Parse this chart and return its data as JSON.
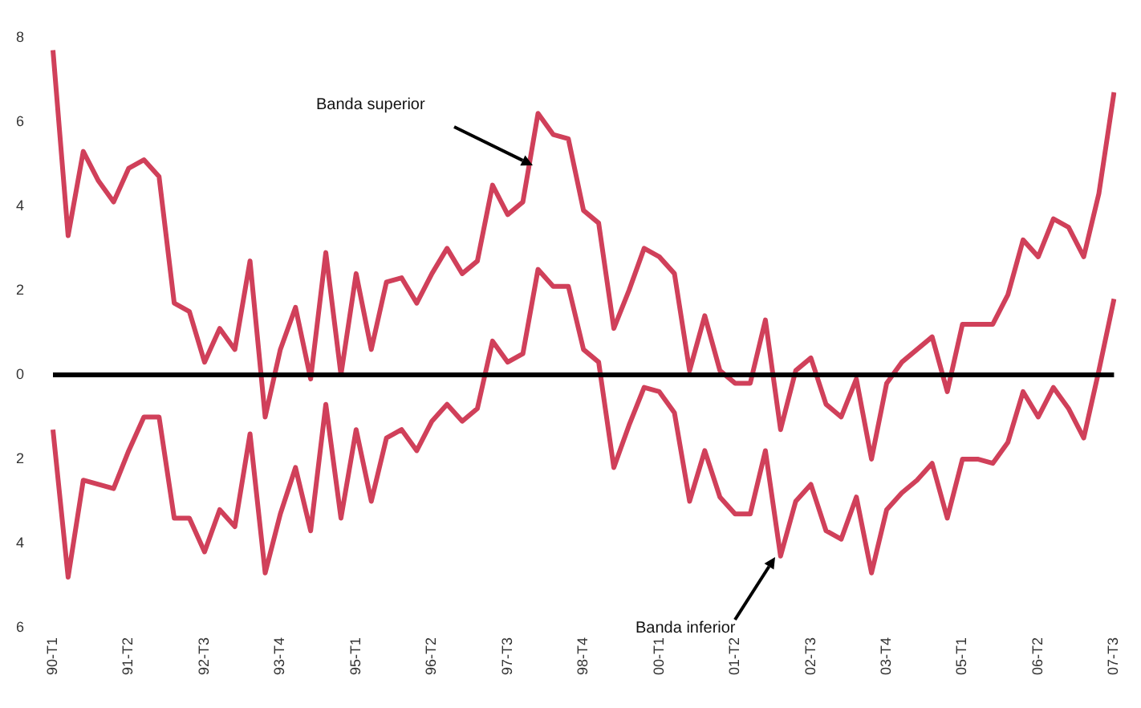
{
  "chart_data": {
    "type": "line",
    "categories": [
      "90-T1",
      null,
      null,
      null,
      null,
      "91-T2",
      null,
      null,
      null,
      null,
      "92-T3",
      null,
      null,
      null,
      null,
      "93-T4",
      null,
      null,
      null,
      null,
      "95-T1",
      null,
      null,
      null,
      null,
      "96-T2",
      null,
      null,
      null,
      null,
      "97-T3",
      null,
      null,
      null,
      null,
      "98-T4",
      null,
      null,
      null,
      null,
      "00-T1",
      null,
      null,
      null,
      null,
      "01-T2",
      null,
      null,
      null,
      null,
      "02-T3",
      null,
      null,
      null,
      null,
      "03-T4",
      null,
      null,
      null,
      null,
      "05-T1",
      null,
      null,
      null,
      null,
      "06-T2",
      null,
      null,
      null,
      null,
      "07-T3"
    ],
    "series": [
      {
        "color": "#d0405a",
        "values": [
          7.7,
          3.3,
          5.3,
          4.6,
          4.1,
          4.9,
          5.1,
          4.7,
          1.7,
          1.5,
          0.3,
          1.1,
          0.6,
          2.7,
          -1.0,
          0.6,
          1.6,
          -0.1,
          2.9,
          0,
          2.4,
          0.6,
          2.2,
          2.3,
          1.7,
          2.4,
          3.0,
          2.4,
          2.7,
          4.5,
          3.8,
          4.1,
          6.2,
          5.7,
          5.6,
          3.9,
          3.6,
          1.1,
          2.0,
          3.0,
          2.8,
          2.4,
          0.1,
          1.4,
          0.1,
          -0.2,
          -0.2,
          1.3,
          -1.3,
          0.1,
          0.4,
          -0.7,
          -1.0,
          -0.1,
          -2.0,
          -0.2,
          0.3,
          0.6,
          0.9,
          -0.4,
          1.2,
          1.2,
          1.2,
          1.9,
          3.2,
          2.8,
          3.7,
          3.5,
          2.8,
          4.3,
          6.7
        ]
      },
      {
        "color": "#d0405a",
        "values": [
          -1.3,
          -4.8,
          -2.5,
          -2.6,
          -2.7,
          -1.8,
          -1.0,
          -1.0,
          -3.4,
          -3.4,
          -4.2,
          -3.2,
          -3.6,
          -1.4,
          -4.7,
          -3.3,
          -2.2,
          -3.7,
          -0.7,
          -3.4,
          -1.3,
          -3.0,
          -1.5,
          -1.3,
          -1.8,
          -1.1,
          -0.7,
          -1.1,
          -0.8,
          0.8,
          0.3,
          0.5,
          2.5,
          2.1,
          2.1,
          0.6,
          0.3,
          -2.2,
          -1.2,
          -0.3,
          -0.4,
          -0.9,
          -3.0,
          -1.8,
          -2.9,
          -3.3,
          -3.3,
          -1.8,
          -4.3,
          -3.0,
          -2.6,
          -3.7,
          -3.9,
          -2.9,
          -4.7,
          -3.2,
          -2.8,
          -2.5,
          -2.1,
          -3.4,
          -2.0,
          -2.0,
          -2.1,
          -1.6,
          -0.4,
          -1.0,
          -0.3,
          -0.8,
          -1.5,
          0.1,
          1.8
        ]
      }
    ],
    "ylim": [
      -6,
      8
    ],
    "yticks": [
      8,
      6,
      4,
      2,
      0,
      {
        "value": -2,
        "label": "2"
      },
      {
        "value": -4,
        "label": "4"
      },
      {
        "value": -6,
        "label": "6"
      }
    ],
    "ref_lines": [
      {
        "axis": "y",
        "value": 0,
        "color": "#000000"
      }
    ],
    "annotations": [
      "Banda superior",
      "Banda inferior"
    ],
    "grid": false,
    "legend": false,
    "marker": "none",
    "line_style": "solid"
  }
}
